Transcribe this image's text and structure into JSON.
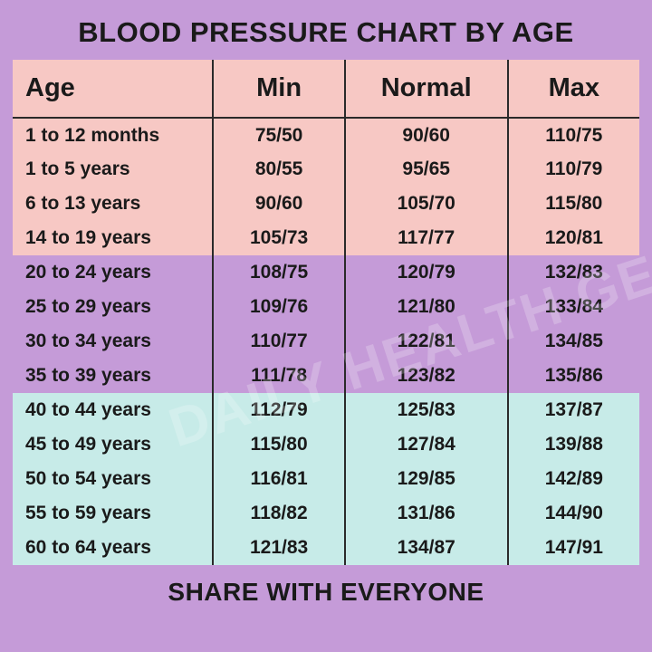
{
  "title": "BLOOD PRESSURE CHART BY AGE",
  "footer": "SHARE WITH EVERYONE",
  "watermark": "DAILY HEALTH GEN",
  "columns": [
    "Age",
    "Min",
    "Normal",
    "Max"
  ],
  "band_colors": {
    "header": "#f7c8c4",
    "pink": "#f7c8c4",
    "purple": "#c59bd8",
    "teal": "#c7ebe8"
  },
  "rows": [
    {
      "age": "1 to 12 months",
      "min": "75/50",
      "normal": "90/60",
      "max": "110/75",
      "band": "pink"
    },
    {
      "age": "1 to 5 years",
      "min": "80/55",
      "normal": "95/65",
      "max": "110/79",
      "band": "pink"
    },
    {
      "age": "6 to 13 years",
      "min": "90/60",
      "normal": "105/70",
      "max": "115/80",
      "band": "pink"
    },
    {
      "age": "14 to 19 years",
      "min": "105/73",
      "normal": "117/77",
      "max": "120/81",
      "band": "pink"
    },
    {
      "age": "20 to 24 years",
      "min": "108/75",
      "normal": "120/79",
      "max": "132/83",
      "band": "purple"
    },
    {
      "age": "25 to 29 years",
      "min": "109/76",
      "normal": "121/80",
      "max": "133/84",
      "band": "purple"
    },
    {
      "age": "30 to 34 years",
      "min": "110/77",
      "normal": "122/81",
      "max": "134/85",
      "band": "purple"
    },
    {
      "age": "35 to 39 years",
      "min": "111/78",
      "normal": "123/82",
      "max": "135/86",
      "band": "purple"
    },
    {
      "age": "40 to 44 years",
      "min": "112/79",
      "normal": "125/83",
      "max": "137/87",
      "band": "teal"
    },
    {
      "age": "45 to 49 years",
      "min": "115/80",
      "normal": "127/84",
      "max": "139/88",
      "band": "teal"
    },
    {
      "age": "50 to 54 years",
      "min": "116/81",
      "normal": "129/85",
      "max": "142/89",
      "band": "teal"
    },
    {
      "age": "55 to 59 years",
      "min": "118/82",
      "normal": "131/86",
      "max": "144/90",
      "band": "teal"
    },
    {
      "age": "60 to 64 years",
      "min": "121/83",
      "normal": "134/87",
      "max": "147/91",
      "band": "teal"
    }
  ]
}
